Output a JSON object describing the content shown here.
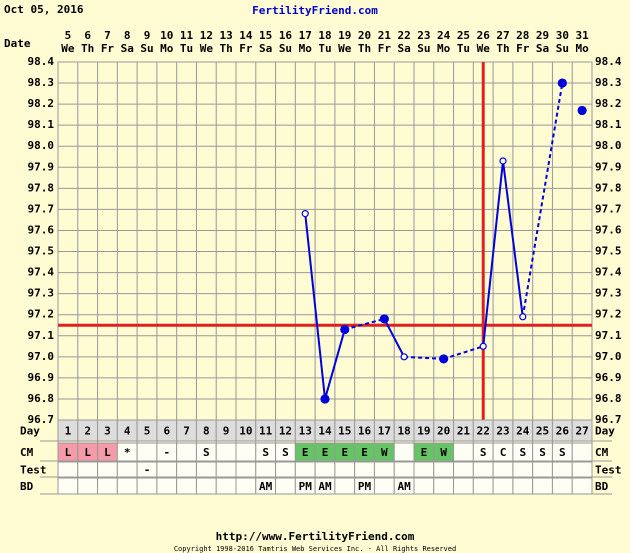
{
  "header": {
    "date": "Oct 05, 2016",
    "site": "FertilityFriend.com"
  },
  "chart_data": {
    "type": "line",
    "dates": [
      "5",
      "6",
      "7",
      "8",
      "9",
      "10",
      "11",
      "12",
      "13",
      "14",
      "15",
      "16",
      "17",
      "18",
      "19",
      "20",
      "21",
      "22",
      "23",
      "24",
      "25",
      "26",
      "27",
      "28",
      "29",
      "30",
      "31"
    ],
    "weekdays": [
      "We",
      "Th",
      "Fr",
      "Sa",
      "Su",
      "Mo",
      "Tu",
      "We",
      "Th",
      "Fr",
      "Sa",
      "Su",
      "Mo",
      "Tu",
      "We",
      "Th",
      "Fr",
      "Sa",
      "Su",
      "Mo",
      "Tu",
      "We",
      "Th",
      "Fr",
      "Sa",
      "Su",
      "Mo"
    ],
    "categories": [
      "1",
      "2",
      "3",
      "4",
      "5",
      "6",
      "7",
      "8",
      "9",
      "10",
      "11",
      "12",
      "13",
      "14",
      "15",
      "16",
      "17",
      "18",
      "19",
      "20",
      "21",
      "22",
      "23",
      "24",
      "25",
      "26",
      "27"
    ],
    "values": [
      null,
      null,
      null,
      null,
      null,
      null,
      null,
      null,
      null,
      null,
      null,
      null,
      97.68,
      96.8,
      97.13,
      null,
      97.18,
      97.0,
      null,
      96.99,
      null,
      97.05,
      97.93,
      97.19,
      null,
      98.3,
      98.17
    ],
    "markers": [
      null,
      null,
      null,
      null,
      null,
      null,
      null,
      null,
      null,
      null,
      null,
      null,
      "open",
      "filled",
      "filled",
      null,
      "filled",
      "open",
      null,
      "filled",
      null,
      "open",
      "open",
      "open",
      null,
      "filled",
      "filled"
    ],
    "color": "#0000dd",
    "ylim": [
      96.7,
      98.4
    ],
    "yticks": [
      {
        "value": 96.7,
        "label": "96.7"
      },
      {
        "value": 96.8,
        "label": "96.8"
      },
      {
        "value": 96.9,
        "label": "96.9"
      },
      {
        "value": 97.0,
        "label": "97.0"
      },
      {
        "value": 97.1,
        "label": "97.1"
      },
      {
        "value": 97.2,
        "label": "97.2"
      },
      {
        "value": 97.3,
        "label": "97.3"
      },
      {
        "value": 97.4,
        "label": "97.4"
      },
      {
        "value": 97.5,
        "label": "97.5"
      },
      {
        "value": 97.6,
        "label": "97.6"
      },
      {
        "value": 97.7,
        "label": "97.7"
      },
      {
        "value": 97.8,
        "label": "97.8"
      },
      {
        "value": 97.9,
        "label": "97.9"
      },
      {
        "value": 98.0,
        "label": "98.0"
      },
      {
        "value": 98.1,
        "label": "98.1"
      },
      {
        "value": 98.2,
        "label": "98.2"
      },
      {
        "value": 98.3,
        "label": "98.3"
      },
      {
        "value": 98.4,
        "label": "98.4"
      }
    ],
    "coverline": 97.15,
    "ovulation_day": 22,
    "grid": true,
    "row_labels": {
      "date": "Date",
      "day": "Day",
      "cm": "CM",
      "test": "Test",
      "bd": "BD"
    },
    "cm": [
      "L",
      "L",
      "L",
      "*",
      null,
      "-",
      null,
      "S",
      null,
      null,
      "S",
      "S",
      "E",
      "E",
      "E",
      "E",
      "W",
      null,
      "E",
      "W",
      null,
      "S",
      "C",
      "S",
      "S",
      "S",
      null
    ],
    "cm_colors": {
      "L": "#f59aa8",
      "E": "#66c466",
      "W": "#66c466"
    },
    "test": [
      null,
      null,
      null,
      null,
      "-",
      null,
      null,
      null,
      null,
      null,
      null,
      null,
      null,
      null,
      null,
      null,
      null,
      null,
      null,
      null,
      null,
      null,
      null,
      null,
      null,
      null,
      null
    ],
    "bd": [
      null,
      null,
      null,
      null,
      null,
      null,
      null,
      null,
      null,
      null,
      "AM",
      null,
      "PM",
      "AM",
      null,
      "PM",
      null,
      "AM",
      null,
      null,
      null,
      null,
      null,
      null,
      null,
      null,
      null
    ]
  },
  "footer": {
    "url": "http://www.FertilityFriend.com",
    "copyright": "Copyright 1998-2016 Tamtris Web Services Inc. - All Rights Reserved"
  }
}
